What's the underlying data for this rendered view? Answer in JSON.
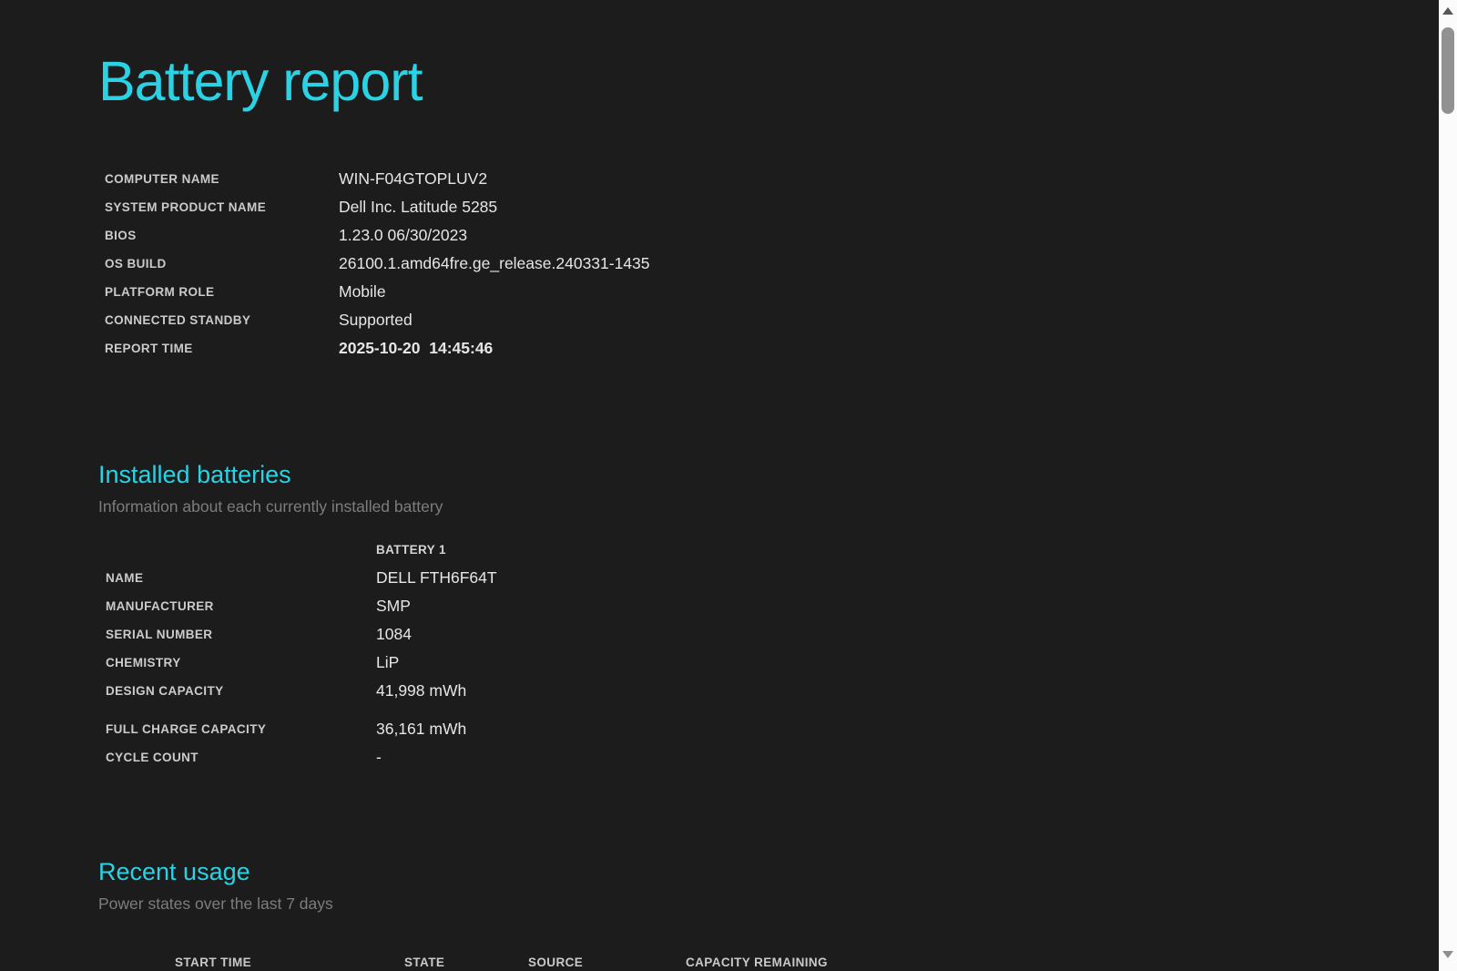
{
  "page": {
    "title": "Battery report"
  },
  "system_info": {
    "rows": [
      {
        "label": "COMPUTER NAME",
        "value": "WIN-F04GTOPLUV2"
      },
      {
        "label": "SYSTEM PRODUCT NAME",
        "value": "Dell Inc. Latitude 5285"
      },
      {
        "label": "BIOS",
        "value": "1.23.0 06/30/2023"
      },
      {
        "label": "OS BUILD",
        "value": "26100.1.amd64fre.ge_release.240331-1435"
      },
      {
        "label": "PLATFORM ROLE",
        "value": "Mobile"
      },
      {
        "label": "CONNECTED STANDBY",
        "value": "Supported"
      },
      {
        "label": "REPORT TIME",
        "value": "2025-10-20  14:45:46"
      }
    ]
  },
  "installed_batteries": {
    "heading": "Installed batteries",
    "subtitle": "Information about each currently installed battery",
    "column_header": "BATTERY 1",
    "rows": [
      {
        "label": "NAME",
        "value": "DELL FTH6F64T"
      },
      {
        "label": "MANUFACTURER",
        "value": "SMP"
      },
      {
        "label": "SERIAL NUMBER",
        "value": "1084"
      },
      {
        "label": "CHEMISTRY",
        "value": "LiP"
      },
      {
        "label": "DESIGN CAPACITY",
        "value": "41,998 mWh"
      },
      {
        "label": "FULL CHARGE CAPACITY",
        "value": "36,161 mWh"
      },
      {
        "label": "CYCLE COUNT",
        "value": "-"
      }
    ]
  },
  "recent_usage": {
    "heading": "Recent usage",
    "subtitle": "Power states over the last 7 days",
    "table_headers": [
      "START TIME",
      "STATE",
      "SOURCE",
      "CAPACITY REMAINING"
    ]
  },
  "scrollbar": {
    "up_icon": "up-arrow",
    "down_icon": "down-arrow"
  },
  "colors": {
    "background": "#1c1c1c",
    "accent": "#2bd2e4",
    "label_text": "#cbcbcb",
    "value_text": "#e6e6e6",
    "subtitle_text": "#7d7d7d",
    "scrollbar_track": "#fbfbfb",
    "scrollbar_thumb": "#919191"
  }
}
